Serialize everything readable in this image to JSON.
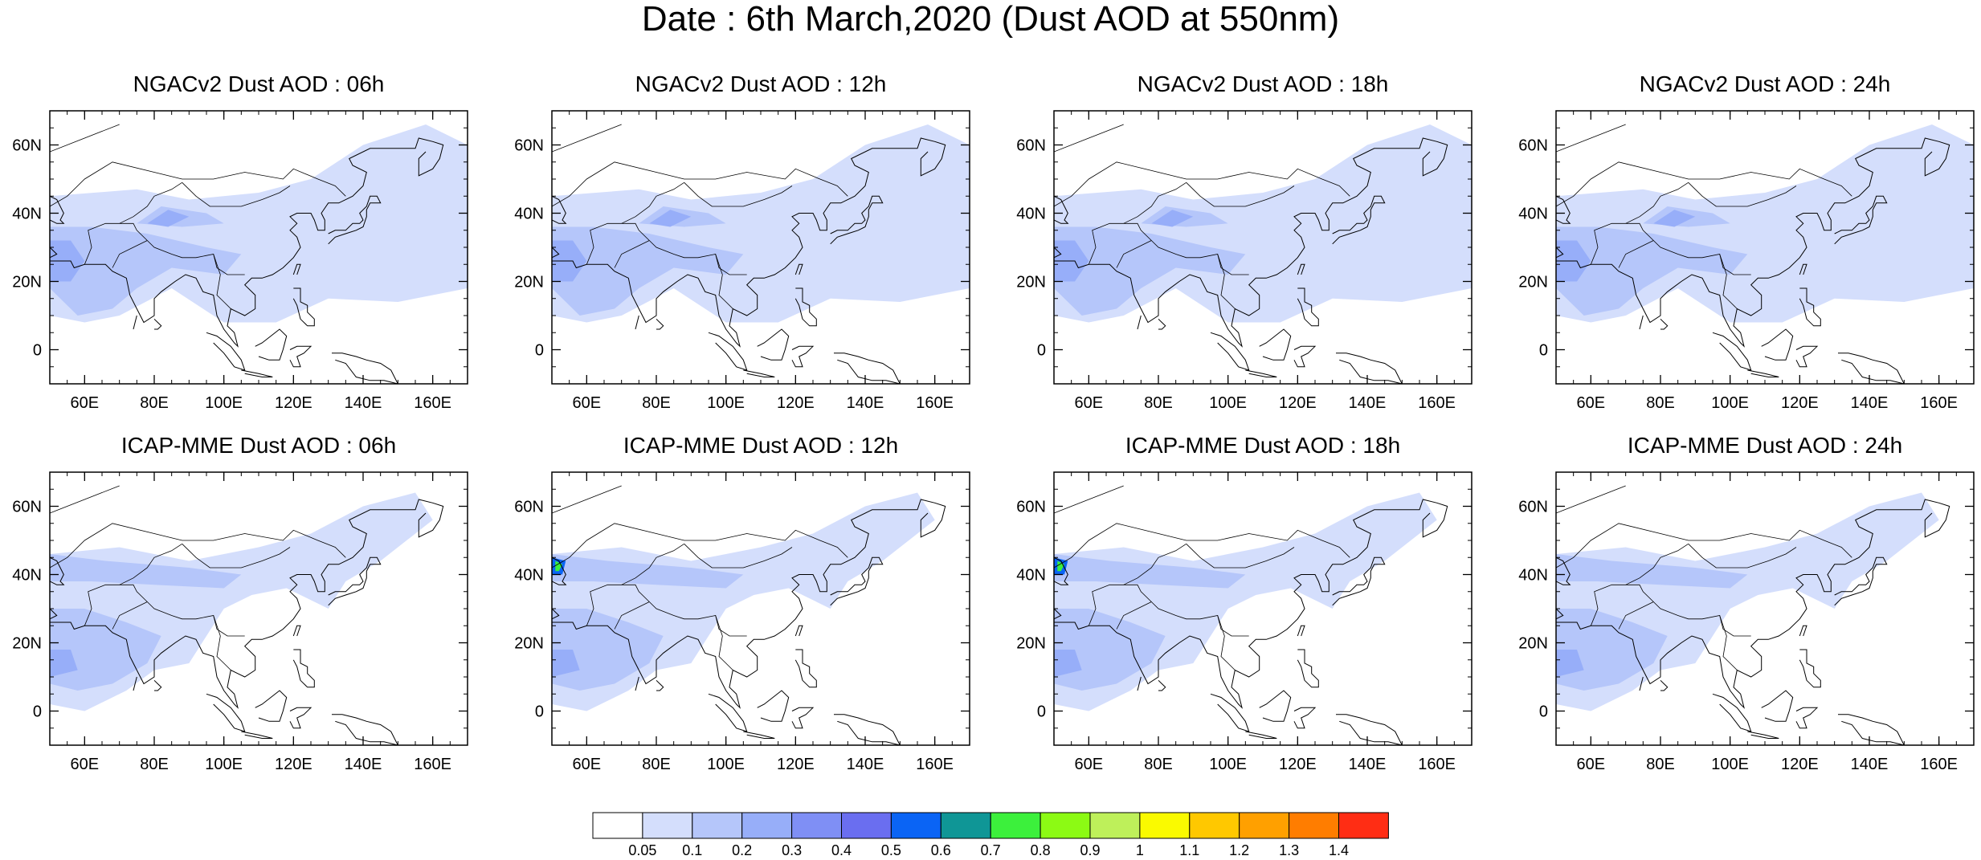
{
  "title": "Date : 6th March,2020 (Dust AOD at 550nm)",
  "panels": [
    {
      "title": "NGACv2 Dust AOD : 06h"
    },
    {
      "title": "NGACv2 Dust AOD : 12h"
    },
    {
      "title": "NGACv2 Dust AOD : 18h"
    },
    {
      "title": "NGACv2 Dust AOD : 24h"
    },
    {
      "title": "ICAP-MME Dust AOD : 06h"
    },
    {
      "title": "ICAP-MME Dust AOD : 12h"
    },
    {
      "title": "ICAP-MME Dust AOD : 18h"
    },
    {
      "title": "ICAP-MME Dust AOD : 24h"
    }
  ],
  "map": {
    "lon_range": [
      50,
      170
    ],
    "lat_range": [
      -10,
      70
    ],
    "lon_ticks": [
      60,
      80,
      100,
      120,
      140,
      160
    ],
    "lon_tick_labels": [
      "60E",
      "80E",
      "100E",
      "120E",
      "140E",
      "160E"
    ],
    "lat_ticks": [
      0,
      20,
      40,
      60
    ],
    "lat_tick_labels": [
      "0",
      "20N",
      "40N",
      "60N"
    ]
  },
  "colorbar": {
    "labels": [
      "0.05",
      "0.1",
      "0.2",
      "0.3",
      "0.4",
      "0.5",
      "0.6",
      "0.7",
      "0.8",
      "0.9",
      "1",
      "1.1",
      "1.2",
      "1.3",
      "1.4"
    ],
    "colors": [
      "#ffffff",
      "#d4defc",
      "#b5c6fa",
      "#97aef9",
      "#7f8ff5",
      "#6a6ef0",
      "#0a64f5",
      "#0f9696",
      "#3cf03c",
      "#8cfa14",
      "#bef05a",
      "#fafa00",
      "#ffc800",
      "#ffa000",
      "#ff7d00",
      "#ff2d14"
    ]
  }
}
